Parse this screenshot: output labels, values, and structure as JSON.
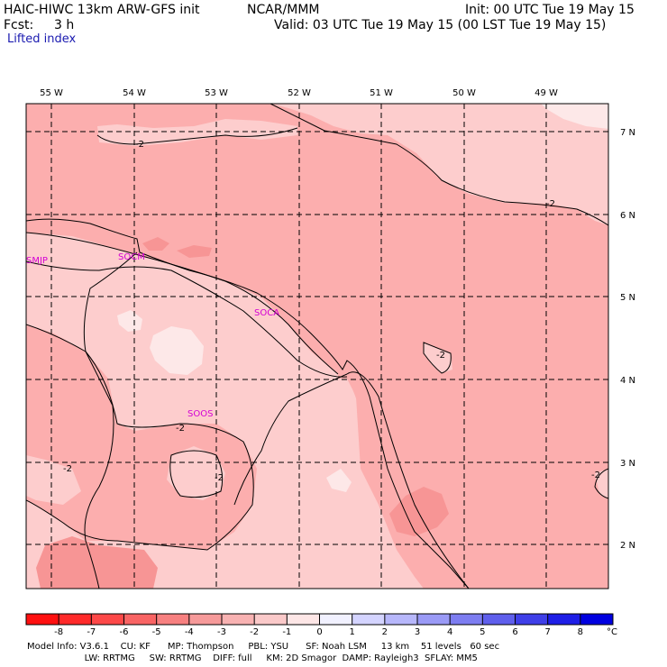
{
  "header": {
    "title_left": "HAIC-HIWC 13km ARW-GFS init",
    "title_center": "NCAR/MMM",
    "init": "Init: 00 UTC Tue 19 May 15",
    "fcst_label": "Fcst:",
    "fcst_value": "3 h",
    "valid": "Valid: 03 UTC Tue 19 May 15 (00 LST Tue 19 May 15)",
    "field": "Lifted index"
  },
  "map": {
    "lon_labels": [
      "55 W",
      "54 W",
      "53 W",
      "52 W",
      "51 W",
      "50 W",
      "49 W"
    ],
    "lat_labels": [
      "7 N",
      "6 N",
      "5 N",
      "4 N",
      "3 N",
      "2 N"
    ],
    "stations": [
      "SMJP",
      "SOCM",
      "SOCA",
      "SOOS"
    ],
    "contour_label": "-2",
    "colors": {
      "lightest": "#fde8e8",
      "light": "#fdcdcd",
      "medium": "#fcaeae",
      "dark": "#f79595",
      "station": "#d400d4"
    }
  },
  "legend": {
    "ticks": [
      "-8",
      "-7",
      "-6",
      "-5",
      "-4",
      "-3",
      "-2",
      "-1",
      "0",
      "1",
      "2",
      "3",
      "4",
      "5",
      "6",
      "7",
      "8"
    ],
    "unit": "°C",
    "colors": [
      "#ff1010",
      "#ff2a2a",
      "#fd4848",
      "#f96464",
      "#f78080",
      "#f69a9a",
      "#f8b2b2",
      "#fac9c9",
      "#fde6e6",
      "#f1f1ff",
      "#d4d4ff",
      "#b7b7fb",
      "#9a9af6",
      "#7d7df1",
      "#5f5fec",
      "#3f3fe8",
      "#1e1ee6",
      "#0000e0"
    ]
  },
  "footer": {
    "line1": "Model Info: V3.6.1    CU: KF      MP: Thompson     PBL: YSU      SF: Noah LSM     13 km    51 levels   60 sec",
    "line2": "                    LW: RRTMG     SW: RRTMG    DIFF: full     KM: 2D Smagor  DAMP: Rayleigh3  SFLAY: MM5"
  }
}
